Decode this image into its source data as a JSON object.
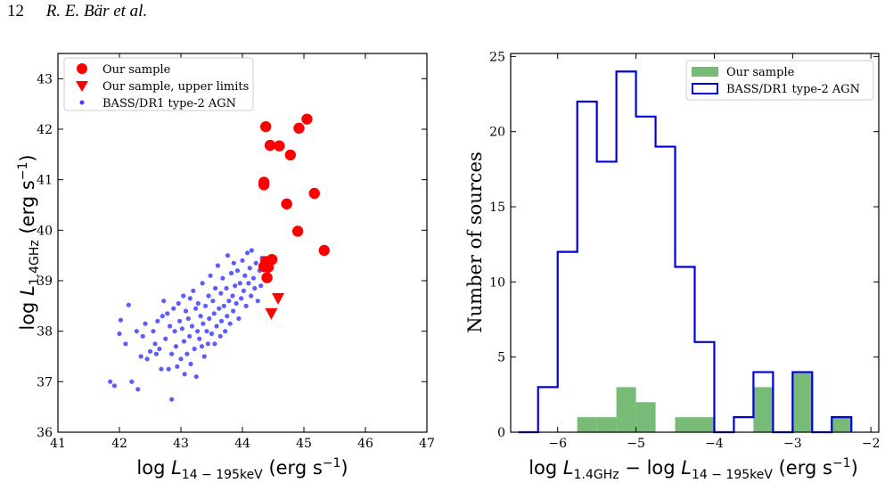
{
  "header": {
    "page_number": "12",
    "authors": "R. E. Bär et al."
  },
  "chart_data": [
    {
      "type": "scatter",
      "title": "",
      "xlabel": "log L14−195keV (erg s−1)",
      "ylabel": "log L1.4GHz (erg s−1)",
      "xlim": [
        41,
        47
      ],
      "ylim": [
        36,
        43.5
      ],
      "xticks": [
        "41",
        "42",
        "43",
        "44",
        "45",
        "46",
        "47"
      ],
      "yticks": [
        "36",
        "37",
        "38",
        "39",
        "40",
        "41",
        "42",
        "43"
      ],
      "legend": {
        "placement": "top-left",
        "entries": [
          "Our sample",
          "Our sample, upper limits",
          "BASS/DR1 type-2 AGN"
        ]
      },
      "series": [
        {
          "name": "Our sample",
          "color": "#ff0000",
          "marker": "circle",
          "points": [
            [
              44.38,
              42.05
            ],
            [
              44.45,
              41.68
            ],
            [
              44.6,
              41.67
            ],
            [
              44.78,
              41.49
            ],
            [
              44.92,
              42.02
            ],
            [
              45.05,
              42.2
            ],
            [
              44.35,
              40.95
            ],
            [
              44.35,
              40.9
            ],
            [
              44.72,
              40.52
            ],
            [
              45.17,
              40.73
            ],
            [
              44.9,
              39.98
            ],
            [
              45.33,
              39.6
            ],
            [
              44.38,
              39.38
            ],
            [
              44.48,
              39.42
            ],
            [
              44.35,
              39.28
            ],
            [
              44.42,
              39.27
            ],
            [
              44.4,
              39.06
            ]
          ]
        },
        {
          "name": "Our sample, upper limits",
          "color": "#ff0000",
          "marker": "triangle-down",
          "points": [
            [
              44.58,
              38.65
            ],
            [
              44.47,
              38.35
            ]
          ]
        },
        {
          "name": "BASS/DR1 type-2 AGN",
          "color": "#4040ff",
          "marker": "dot",
          "points": [
            [
              41.85,
              37.0
            ],
            [
              41.92,
              36.92
            ],
            [
              42.0,
              37.95
            ],
            [
              42.02,
              38.22
            ],
            [
              42.1,
              37.75
            ],
            [
              42.15,
              38.52
            ],
            [
              42.2,
              37.0
            ],
            [
              42.28,
              38.0
            ],
            [
              42.3,
              36.85
            ],
            [
              42.35,
              37.5
            ],
            [
              42.38,
              37.9
            ],
            [
              42.42,
              38.15
            ],
            [
              42.45,
              37.45
            ],
            [
              42.5,
              37.6
            ],
            [
              42.55,
              38.0
            ],
            [
              42.58,
              37.75
            ],
            [
              42.6,
              37.55
            ],
            [
              42.62,
              38.2
            ],
            [
              42.65,
              37.65
            ],
            [
              42.68,
              37.25
            ],
            [
              42.7,
              38.3
            ],
            [
              42.72,
              38.6
            ],
            [
              42.75,
              37.85
            ],
            [
              42.78,
              38.35
            ],
            [
              42.8,
              37.25
            ],
            [
              42.82,
              38.1
            ],
            [
              42.85,
              36.65
            ],
            [
              42.85,
              37.55
            ],
            [
              42.88,
              38.45
            ],
            [
              42.9,
              38.0
            ],
            [
              42.92,
              37.7
            ],
            [
              42.94,
              37.3
            ],
            [
              42.96,
              38.55
            ],
            [
              42.98,
              38.2
            ],
            [
              43.0,
              37.45
            ],
            [
              43.02,
              38.05
            ],
            [
              43.04,
              38.7
            ],
            [
              43.05,
              37.8
            ],
            [
              43.06,
              37.15
            ],
            [
              43.08,
              38.4
            ],
            [
              43.1,
              37.55
            ],
            [
              43.12,
              38.25
            ],
            [
              43.14,
              37.9
            ],
            [
              43.15,
              38.65
            ],
            [
              43.16,
              37.35
            ],
            [
              43.18,
              38.1
            ],
            [
              43.2,
              38.8
            ],
            [
              43.22,
              37.65
            ],
            [
              43.24,
              38.45
            ],
            [
              43.25,
              37.1
            ],
            [
              43.27,
              38.0
            ],
            [
              43.28,
              38.55
            ],
            [
              43.3,
              37.85
            ],
            [
              43.32,
              38.3
            ],
            [
              43.34,
              37.7
            ],
            [
              43.35,
              38.95
            ],
            [
              43.36,
              38.15
            ],
            [
              43.38,
              37.5
            ],
            [
              43.4,
              38.5
            ],
            [
              43.42,
              38.0
            ],
            [
              43.44,
              37.75
            ],
            [
              43.45,
              38.7
            ],
            [
              43.46,
              38.25
            ],
            [
              43.48,
              39.1
            ],
            [
              43.5,
              37.95
            ],
            [
              43.52,
              38.6
            ],
            [
              43.54,
              38.35
            ],
            [
              43.55,
              37.75
            ],
            [
              43.56,
              38.85
            ],
            [
              43.58,
              38.1
            ],
            [
              43.6,
              39.3
            ],
            [
              43.62,
              38.45
            ],
            [
              43.64,
              37.9
            ],
            [
              43.65,
              38.75
            ],
            [
              43.66,
              38.2
            ],
            [
              43.68,
              39.05
            ],
            [
              43.7,
              38.5
            ],
            [
              43.72,
              38.0
            ],
            [
              43.74,
              38.85
            ],
            [
              43.75,
              38.3
            ],
            [
              43.76,
              39.5
            ],
            [
              43.78,
              38.6
            ],
            [
              43.8,
              38.15
            ],
            [
              43.82,
              39.15
            ],
            [
              43.84,
              38.7
            ],
            [
              43.85,
              38.4
            ],
            [
              43.86,
              39.35
            ],
            [
              43.88,
              38.9
            ],
            [
              43.9,
              38.55
            ],
            [
              43.92,
              39.2
            ],
            [
              43.94,
              38.25
            ],
            [
              43.96,
              38.95
            ],
            [
              43.98,
              38.65
            ],
            [
              44.0,
              39.4
            ],
            [
              44.02,
              38.8
            ],
            [
              44.04,
              39.1
            ],
            [
              44.06,
              38.5
            ],
            [
              44.08,
              39.55
            ],
            [
              44.1,
              38.95
            ],
            [
              44.12,
              39.25
            ],
            [
              44.14,
              38.7
            ],
            [
              44.15,
              39.6
            ],
            [
              44.18,
              39.05
            ],
            [
              44.2,
              38.85
            ],
            [
              44.22,
              39.35
            ],
            [
              44.25,
              38.6
            ],
            [
              44.28,
              39.2
            ],
            [
              44.3,
              38.9
            ],
            [
              44.32,
              39.45
            ],
            [
              44.35,
              39.05
            ]
          ]
        }
      ]
    },
    {
      "type": "bar",
      "title": "",
      "xlabel": "log L1.4GHz − log L14−195keV (erg s−1)",
      "ylabel": "Number of sources",
      "xlim": [
        -6.6,
        -1.9
      ],
      "ylim": [
        0,
        25.2
      ],
      "xticks": [
        "−6",
        "−5",
        "−4",
        "−3",
        "−2"
      ],
      "yticks": [
        "0",
        "5",
        "10",
        "15",
        "20",
        "25"
      ],
      "bin_edges": [
        -6.5,
        -6.25,
        -6.0,
        -5.75,
        -5.5,
        -5.25,
        -5.0,
        -4.75,
        -4.5,
        -4.25,
        -4.0,
        -3.75,
        -3.5,
        -3.25,
        -3.0,
        -2.75,
        -2.5,
        -2.25
      ],
      "legend": {
        "placement": "top-right",
        "entries": [
          "Our sample",
          "BASS/DR1 type-2 AGN"
        ]
      },
      "series": [
        {
          "name": "Our sample",
          "color": "#77bb77",
          "style": "filled",
          "values": [
            0,
            0,
            0,
            1,
            1,
            3,
            2,
            0,
            1,
            1,
            0,
            0,
            3,
            0,
            4,
            0,
            1
          ]
        },
        {
          "name": "BASS/DR1 type-2 AGN",
          "color": "#0000dd",
          "style": "step",
          "values": [
            0,
            3,
            12,
            22,
            18,
            24,
            21,
            19,
            11,
            6,
            0,
            1,
            4,
            0,
            4,
            0,
            1
          ]
        }
      ]
    }
  ]
}
